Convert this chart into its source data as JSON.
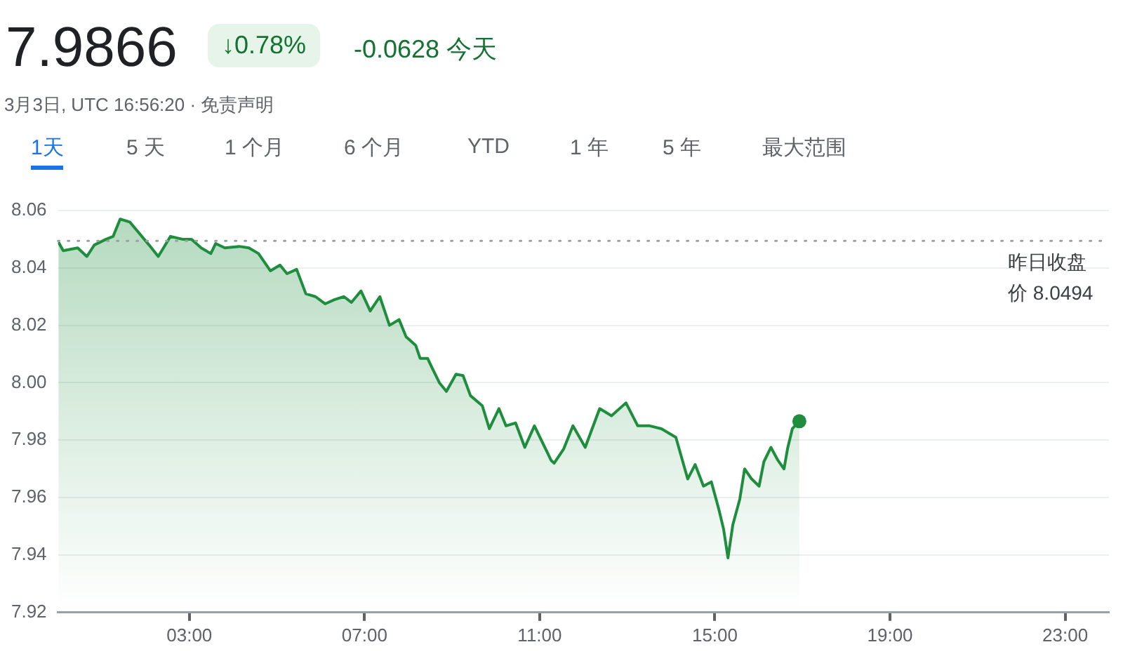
{
  "chart_data": {
    "type": "area",
    "title": "7.9866",
    "subtitle": "3月3日, UTC 16:56:20 · 免责声明",
    "annotations": [
      "↓0.78%",
      "-0.0628 今天",
      "1天",
      "5 天",
      "1 个月",
      "6 个月",
      "YTD",
      "1 年",
      "5 年",
      "最大范围"
    ],
    "x": [
      0.01,
      0.12,
      0.45,
      0.66,
      0.83,
      1.1,
      1.26,
      1.42,
      1.64,
      1.86,
      2.08,
      2.29,
      2.57,
      2.84,
      3.05,
      3.27,
      3.49,
      3.6,
      3.81,
      4.14,
      4.36,
      4.58,
      4.85,
      5.07,
      5.23,
      5.45,
      5.66,
      5.88,
      6.1,
      6.32,
      6.53,
      6.7,
      6.92,
      7.13,
      7.35,
      7.57,
      7.79,
      7.95,
      8.17,
      8.27,
      8.44,
      8.55,
      8.71,
      8.87,
      9.09,
      9.25,
      9.42,
      9.69,
      9.85,
      10.07,
      10.23,
      10.45,
      10.66,
      10.88,
      11.26,
      11.33,
      11.55,
      11.76,
      12.04,
      12.37,
      12.64,
      12.97,
      13.24,
      13.51,
      13.78,
      14.11,
      14.38,
      14.55,
      14.74,
      14.92,
      15.09,
      15.2,
      15.3,
      15.41,
      15.57,
      15.68,
      15.84,
      16.01,
      16.12,
      16.28,
      16.44,
      16.58,
      16.66,
      16.77,
      16.93
    ],
    "series": [
      {
        "color": "#1e8e3e",
        "values": [
          8.049,
          8.046,
          8.047,
          8.044,
          8.048,
          8.05,
          8.051,
          8.057,
          8.056,
          8.052,
          8.048,
          8.044,
          8.051,
          8.05,
          8.05,
          8.047,
          8.045,
          8.0485,
          8.047,
          8.0475,
          8.047,
          8.045,
          8.039,
          8.041,
          8.038,
          8.0395,
          8.031,
          8.03,
          8.0275,
          8.029,
          8.03,
          8.028,
          8.032,
          8.025,
          8.03,
          8.02,
          8.022,
          8.016,
          8.013,
          8.0085,
          8.0085,
          8.005,
          8.0,
          7.997,
          8.003,
          8.0025,
          7.9955,
          7.992,
          7.984,
          7.991,
          7.985,
          7.986,
          7.9775,
          7.985,
          7.973,
          7.972,
          7.977,
          7.985,
          7.9775,
          7.991,
          7.9885,
          7.993,
          7.985,
          7.985,
          7.984,
          7.981,
          7.9665,
          7.9715,
          7.964,
          7.9655,
          7.956,
          7.949,
          7.939,
          7.9505,
          7.9595,
          7.97,
          7.9665,
          7.964,
          7.9725,
          7.9775,
          7.973,
          7.97,
          7.977,
          7.984,
          7.9866
        ]
      }
    ],
    "xlim": [
      0,
      24
    ],
    "xticks": [
      {
        "value": 3,
        "label": "03:00"
      },
      {
        "value": 7,
        "label": "07:00"
      },
      {
        "value": 11,
        "label": "11:00"
      },
      {
        "value": 15,
        "label": "15:00"
      },
      {
        "value": 19,
        "label": "19:00"
      },
      {
        "value": 23,
        "label": "23:00"
      }
    ],
    "ylim": [
      7.92,
      8.06
    ],
    "yticks": [
      {
        "value": 7.92,
        "label": "7.92"
      },
      {
        "value": 7.94,
        "label": "7.94"
      },
      {
        "value": 7.96,
        "label": "7.96"
      },
      {
        "value": 7.98,
        "label": "7.98"
      },
      {
        "value": 8.0,
        "label": "8.00"
      },
      {
        "value": 8.02,
        "label": "8.02"
      },
      {
        "value": 8.04,
        "label": "8.04"
      },
      {
        "value": 8.06,
        "label": "8.06"
      }
    ],
    "grid": "y",
    "legend": false,
    "line_style": "solid",
    "ref_lines": [
      {
        "axis": "y",
        "value": 8.0494,
        "label": "昨日收盘价 8.0494",
        "color": "#9aa0a6",
        "line_style": "dotted"
      }
    ]
  }
}
